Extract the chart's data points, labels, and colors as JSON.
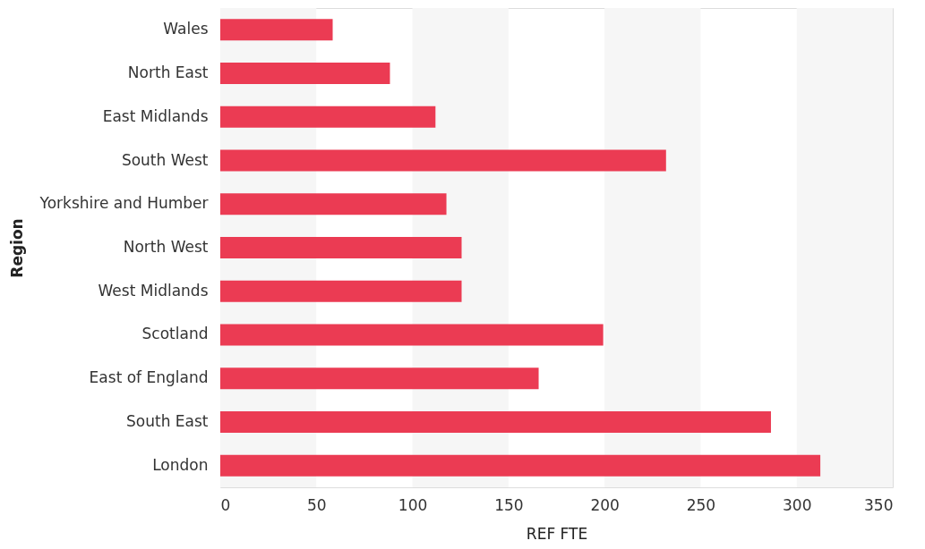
{
  "chart_data": {
    "type": "bar",
    "orientation": "horizontal",
    "xlabel": "REF FTE",
    "ylabel": "Region",
    "categories": [
      "Wales",
      "North East",
      "East Midlands",
      "South West",
      "Yorkshire and Humber",
      "North West",
      "West Midlands",
      "Scotland",
      "East of England",
      "South East",
      "London"
    ],
    "values": [
      58.5,
      88.3,
      112,
      232,
      117.7,
      125.6,
      125.6,
      199.3,
      165.7,
      286.6,
      312.3
    ],
    "color": "#eb3b53",
    "xlim": [
      0,
      350
    ],
    "xticks": [
      0,
      50,
      100,
      150,
      200,
      250,
      300,
      350
    ],
    "bands": [
      {
        "axis": "x",
        "from": 0,
        "to": 50,
        "color": "#f6f6f6"
      },
      {
        "axis": "x",
        "from": 100,
        "to": 150,
        "color": "#f6f6f6"
      },
      {
        "axis": "x",
        "from": 200,
        "to": 250,
        "color": "#f6f6f6"
      },
      {
        "axis": "x",
        "from": 300,
        "to": 350,
        "color": "#f6f6f6"
      }
    ],
    "grid": false
  }
}
